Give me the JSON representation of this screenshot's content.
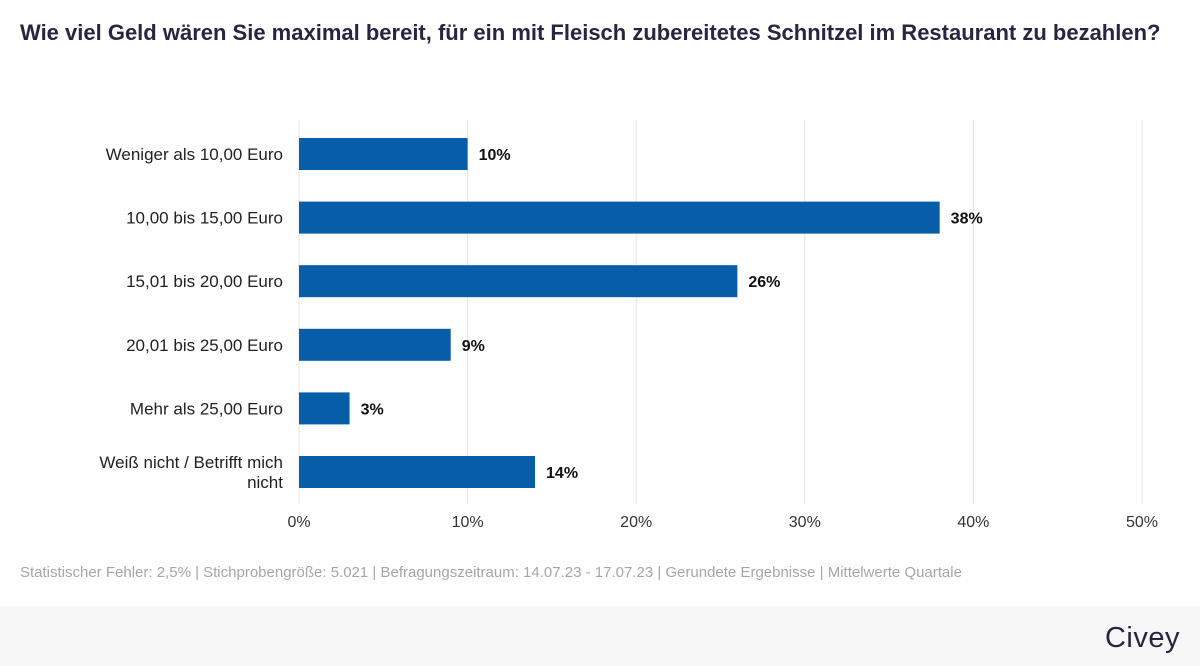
{
  "chart_data": {
    "type": "bar",
    "orientation": "horizontal",
    "title": "Wie viel Geld wären Sie maximal bereit, für ein mit Fleisch zubereitetes Schnitzel im Restaurant zu bezahlen?",
    "categories": [
      [
        "Weniger als 10,00 Euro"
      ],
      [
        "10,00 bis 15,00 Euro"
      ],
      [
        "15,01 bis 20,00 Euro"
      ],
      [
        "20,01 bis 25,00 Euro"
      ],
      [
        "Mehr als 25,00 Euro"
      ],
      [
        "Weiß nicht / Betrifft mich",
        "nicht"
      ]
    ],
    "values": [
      10,
      38,
      26,
      9,
      3,
      14
    ],
    "value_labels": [
      "10%",
      "38%",
      "26%",
      "9%",
      "3%",
      "14%"
    ],
    "xlim": [
      0,
      50
    ],
    "ticks": [
      0,
      10,
      20,
      30,
      40,
      50
    ],
    "tick_labels": [
      "0%",
      "10%",
      "20%",
      "30%",
      "40%",
      "50%"
    ],
    "grid": true,
    "xlabel": "",
    "ylabel": ""
  },
  "colors": {
    "bar": "#075ea8",
    "grid": "#e4e4e4"
  },
  "footnote": "Statistischer Fehler: 2,5% | Stichprobengröße: 5.021 | Befragungszeitraum: 14.07.23 - 17.07.23 | Gerundete Ergebnisse | Mittelwerte Quartale",
  "brand": "Civey"
}
